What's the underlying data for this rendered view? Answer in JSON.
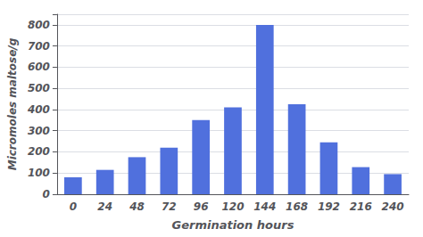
{
  "chart_data": {
    "type": "bar",
    "categories": [
      0,
      24,
      48,
      72,
      96,
      120,
      144,
      168,
      192,
      216,
      240
    ],
    "values": [
      80,
      115,
      175,
      220,
      350,
      410,
      800,
      425,
      245,
      128,
      95
    ],
    "xlabel": "Germination hours",
    "ylabel": "Micromoles maltose/g",
    "ylim": [
      0,
      850
    ],
    "yticks": [
      0,
      100,
      200,
      300,
      400,
      500,
      600,
      700,
      800
    ],
    "grid": true
  }
}
